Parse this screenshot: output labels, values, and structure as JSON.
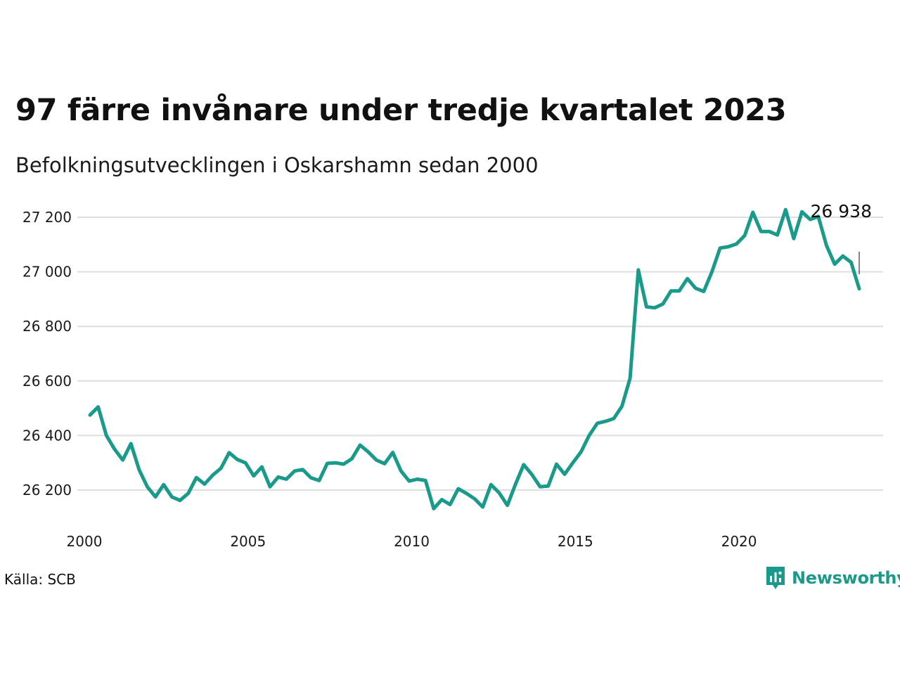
{
  "title": "97 färre invånare under tredje kvartalet 2023",
  "subtitle": "Befolkningsutvecklingen i Oskarshamn sedan 2000",
  "source": "Källa: SCB",
  "brand": {
    "name": "Newsworthy",
    "icon": "newsworthy-logo-icon",
    "color": "#1a9a8a"
  },
  "chart_data": {
    "type": "line",
    "title": "97 färre invånare under tredje kvartalet 2023",
    "subtitle": "Befolkningsutvecklingen i Oskarshamn sedan 2000",
    "xlabel": "",
    "ylabel": "",
    "xlim": [
      2000,
      2024
    ],
    "ylim": [
      26100,
      27280
    ],
    "grid": true,
    "legend": "none",
    "line_color": "#1a9a8a",
    "x_ticks": [
      {
        "value": 2000,
        "label": "2000"
      },
      {
        "value": 2005,
        "label": "2005"
      },
      {
        "value": 2010,
        "label": "2010"
      },
      {
        "value": 2015,
        "label": "2015"
      },
      {
        "value": 2020,
        "label": "2020"
      }
    ],
    "y_ticks": [
      {
        "value": 26200,
        "label": "26 200"
      },
      {
        "value": 26400,
        "label": "26 400"
      },
      {
        "value": 26600,
        "label": "26 600"
      },
      {
        "value": 26800,
        "label": "26 800"
      },
      {
        "value": 27000,
        "label": "27 000"
      },
      {
        "value": 27200,
        "label": "27 200"
      }
    ],
    "annotation": {
      "x": 2023.5,
      "y": 26938,
      "label": "26 938"
    },
    "series": [
      {
        "x": [
          2000.0,
          2000.25,
          2000.5,
          2000.75,
          2001.0,
          2001.25,
          2001.5,
          2001.75,
          2002.0,
          2002.25,
          2002.5,
          2002.75,
          2003.0,
          2003.25,
          2003.5,
          2003.75,
          2004.0,
          2004.25,
          2004.5,
          2004.75,
          2005.0,
          2005.25,
          2005.5,
          2005.75,
          2006.0,
          2006.25,
          2006.5,
          2006.75,
          2007.0,
          2007.25,
          2007.5,
          2007.75,
          2008.0,
          2008.25,
          2008.5,
          2008.75,
          2009.0,
          2009.25,
          2009.5,
          2009.75,
          2010.0,
          2010.25,
          2010.5,
          2010.75,
          2011.0,
          2011.25,
          2011.5,
          2011.75,
          2012.0,
          2012.25,
          2012.5,
          2012.75,
          2013.0,
          2013.25,
          2013.5,
          2013.75,
          2014.0,
          2014.25,
          2014.5,
          2014.75,
          2015.0,
          2015.25,
          2015.5,
          2015.75,
          2016.0,
          2016.25,
          2016.5,
          2016.75,
          2017.0,
          2017.25,
          2017.5,
          2017.75,
          2018.0,
          2018.25,
          2018.5,
          2018.75,
          2019.0,
          2019.25,
          2019.5,
          2019.75,
          2020.0,
          2020.25,
          2020.5,
          2020.75,
          2021.0,
          2021.25,
          2021.5,
          2021.75,
          2022.0,
          2022.25,
          2022.5,
          2022.75,
          2023.0,
          2023.25,
          2023.5
        ],
        "values": [
          26475,
          26505,
          26400,
          26350,
          26310,
          26370,
          26275,
          26212,
          26175,
          26220,
          26175,
          26162,
          26188,
          26246,
          26222,
          26255,
          26280,
          26337,
          26312,
          26300,
          26252,
          26285,
          26212,
          26248,
          26240,
          26270,
          26275,
          26245,
          26235,
          26298,
          26300,
          26295,
          26315,
          26365,
          26340,
          26310,
          26297,
          26338,
          26270,
          26233,
          26240,
          26235,
          26132,
          26165,
          26147,
          26205,
          26188,
          26168,
          26138,
          26220,
          26190,
          26144,
          26222,
          26293,
          26257,
          26212,
          26215,
          26295,
          26258,
          26300,
          26340,
          26400,
          26445,
          26452,
          26462,
          26507,
          26610,
          27007,
          26872,
          26868,
          26882,
          26930,
          26930,
          26975,
          26940,
          26928,
          27000,
          27087,
          27092,
          27102,
          27133,
          27218,
          27148,
          27148,
          27135,
          27228,
          27122,
          27220,
          27192,
          27203,
          27097,
          27028,
          27058,
          27035,
          26938
        ]
      }
    ]
  }
}
